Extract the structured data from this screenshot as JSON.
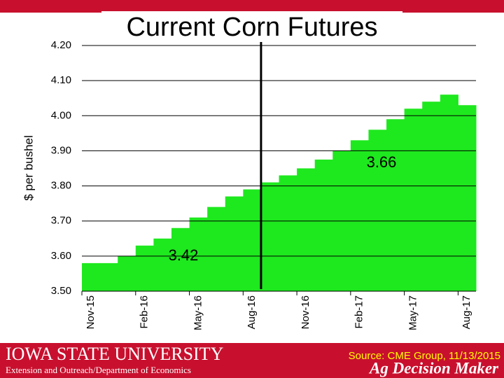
{
  "chart_data": {
    "type": "bar",
    "title": "Current Corn Futures",
    "y_label": "$ per bushel",
    "categories": [
      "Nov-15",
      null,
      null,
      "Feb-16",
      null,
      null,
      "May-16",
      null,
      null,
      "Aug-16",
      null,
      null,
      "Nov-16",
      null,
      null,
      "Feb-17",
      null,
      null,
      "May-17",
      null,
      null,
      "Aug-17"
    ],
    "values": [
      3.58,
      3.58,
      3.6,
      3.63,
      3.65,
      3.68,
      3.71,
      3.74,
      3.77,
      3.79,
      3.81,
      3.83,
      3.85,
      3.875,
      3.9,
      3.93,
      3.96,
      3.99,
      4.02,
      4.04,
      4.06,
      4.03
    ],
    "color": "#1ee81e",
    "ylim": [
      3.5,
      4.2
    ],
    "yticks": [
      {
        "value": 3.5,
        "label": "3.50"
      },
      {
        "value": 3.6,
        "label": "3.60"
      },
      {
        "value": 3.7,
        "label": "3.70"
      },
      {
        "value": 3.8,
        "label": "3.80"
      },
      {
        "value": 3.9,
        "label": "3.90"
      },
      {
        "value": 4.0,
        "label": "4.00"
      },
      {
        "value": 4.1,
        "label": "4.10"
      },
      {
        "value": 4.2,
        "label": "4.20"
      }
    ],
    "grid": true,
    "annotations": [
      "3.42",
      "3.66"
    ]
  },
  "footer": {
    "university": "Iowa State University",
    "department": "Extension and Outreach/Department of Economics",
    "source": "Source: CME Group, 11/13/2015",
    "brand": "Ag Decision Maker"
  }
}
